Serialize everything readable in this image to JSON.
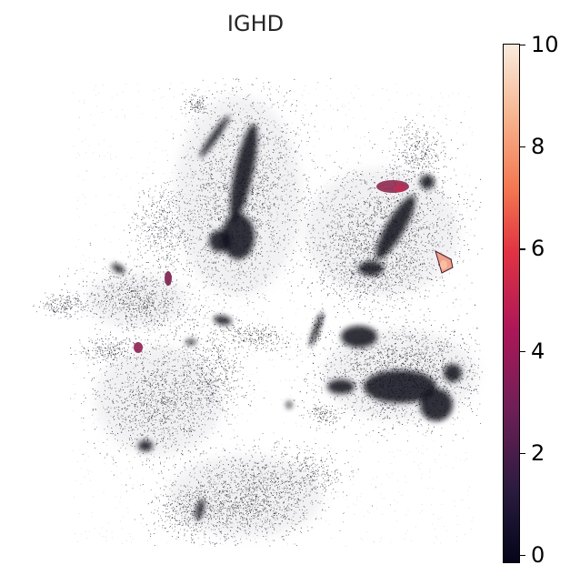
{
  "chart_data": {
    "type": "scatter",
    "title": "IGHD",
    "xlabel": "",
    "ylabel": "",
    "axes_visible": false,
    "colormap": "rocket",
    "colorbar": {
      "min": 0,
      "max": 10,
      "ticks": [
        "0",
        "2",
        "4",
        "6",
        "8",
        "10"
      ],
      "tick_values": [
        0,
        2,
        4,
        6,
        8,
        10
      ],
      "stops": [
        "#03051a",
        "#2b1b3f",
        "#701f57",
        "#ad1759",
        "#e13342",
        "#f37651",
        "#f6b48f",
        "#faebdd"
      ]
    },
    "clusters": [
      {
        "name": "upper-left",
        "density": "dense",
        "max_value": 0.6
      },
      {
        "name": "upper-right",
        "density": "dense",
        "max_value": 5.5
      },
      {
        "name": "right-outlier",
        "density": "small",
        "max_value": 8.5
      },
      {
        "name": "left-middle",
        "density": "medium",
        "max_value": 4.5
      },
      {
        "name": "center-right",
        "density": "dense",
        "max_value": 1.0
      },
      {
        "name": "lower-left",
        "density": "medium",
        "max_value": 0.5
      },
      {
        "name": "bottom",
        "density": "medium",
        "max_value": 0.3
      }
    ]
  }
}
